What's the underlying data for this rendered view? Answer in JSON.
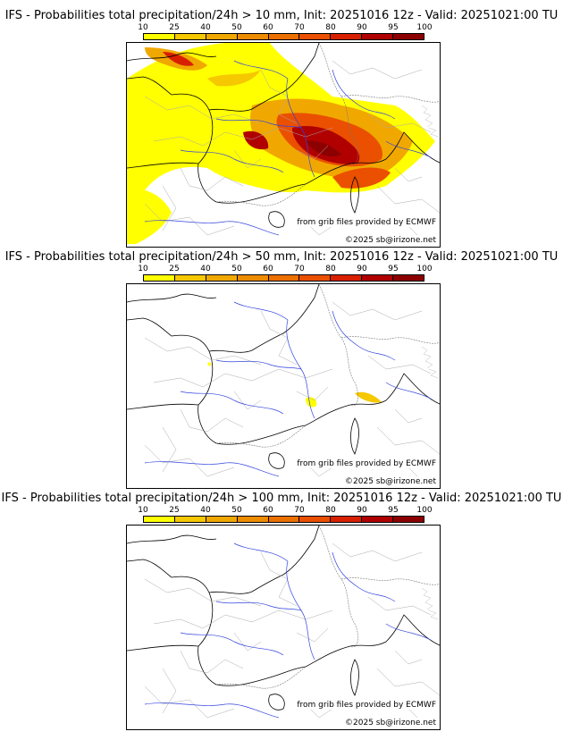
{
  "colorbar": {
    "ticks": [
      "10",
      "25",
      "40",
      "50",
      "60",
      "70",
      "80",
      "90",
      "95",
      "100"
    ],
    "colors": [
      "#ffff00",
      "#f5c800",
      "#f0a800",
      "#ee8c00",
      "#ec7000",
      "#ea5000",
      "#d82000",
      "#b00000",
      "#8c0000",
      "#640000"
    ]
  },
  "panels": [
    {
      "title": "IFS - Probabilities total precipitation/24h > 10 mm, Init: 20251016 12z - Valid: 20251021:00 TU",
      "source_credit": "from grib files provided by ECMWF",
      "copyright": "©2025 sb@irizone.net"
    },
    {
      "title": "IFS - Probabilities total precipitation/24h > 50 mm, Init: 20251016 12z - Valid: 20251021:00 TU",
      "source_credit": "from grib files provided by ECMWF",
      "copyright": "©2025 sb@irizone.net"
    },
    {
      "title": "IFS - Probabilities total precipitation/24h > 100 mm, Init: 20251016 12z - Valid: 20251021:00 TU",
      "source_credit": "from grib files provided by ECMWF",
      "copyright": "©2025 sb@irizone.net"
    }
  ]
}
